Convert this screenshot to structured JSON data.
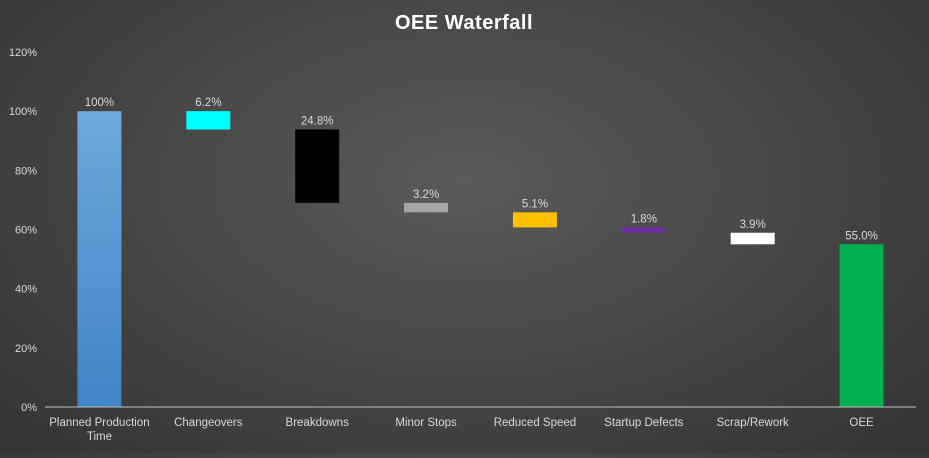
{
  "chart_data": {
    "type": "bar",
    "subtype": "waterfall",
    "title": "OEE Waterfall",
    "xlabel": "",
    "ylabel": "",
    "ylim": [
      0,
      120
    ],
    "yticks": [
      "0%",
      "20%",
      "40%",
      "60%",
      "80%",
      "100%",
      "120%"
    ],
    "grid": false,
    "legend": "none",
    "categories": [
      "Planned Production Time",
      "Changeovers",
      "Breakdowns",
      "Minor Stops",
      "Reduced Speed",
      "Startup Defects",
      "Scrap/Rework",
      "OEE"
    ],
    "bars": [
      {
        "category": "Planned Production Time",
        "start": 0,
        "end": 100,
        "label": "100%",
        "color": "#5b9bd5"
      },
      {
        "category": "Changeovers",
        "start": 93.8,
        "end": 100,
        "label": "6.2%",
        "color": "#00ffff"
      },
      {
        "category": "Breakdowns",
        "start": 69.0,
        "end": 93.8,
        "label": "24.8%",
        "color": "#000000"
      },
      {
        "category": "Minor Stops",
        "start": 65.8,
        "end": 69.0,
        "label": "3.2%",
        "color": "#a6a6a6"
      },
      {
        "category": "Reduced Speed",
        "start": 60.7,
        "end": 65.8,
        "label": "5.1%",
        "color": "#ffc000"
      },
      {
        "category": "Startup Defects",
        "start": 58.9,
        "end": 60.7,
        "label": "1.8%",
        "color": "#7030a0"
      },
      {
        "category": "Scrap/Rework",
        "start": 55.0,
        "end": 58.9,
        "label": "3.9%",
        "color": "#ffffff"
      },
      {
        "category": "OEE",
        "start": 0,
        "end": 55.0,
        "label": "55.0%",
        "color": "#00b050"
      }
    ]
  }
}
